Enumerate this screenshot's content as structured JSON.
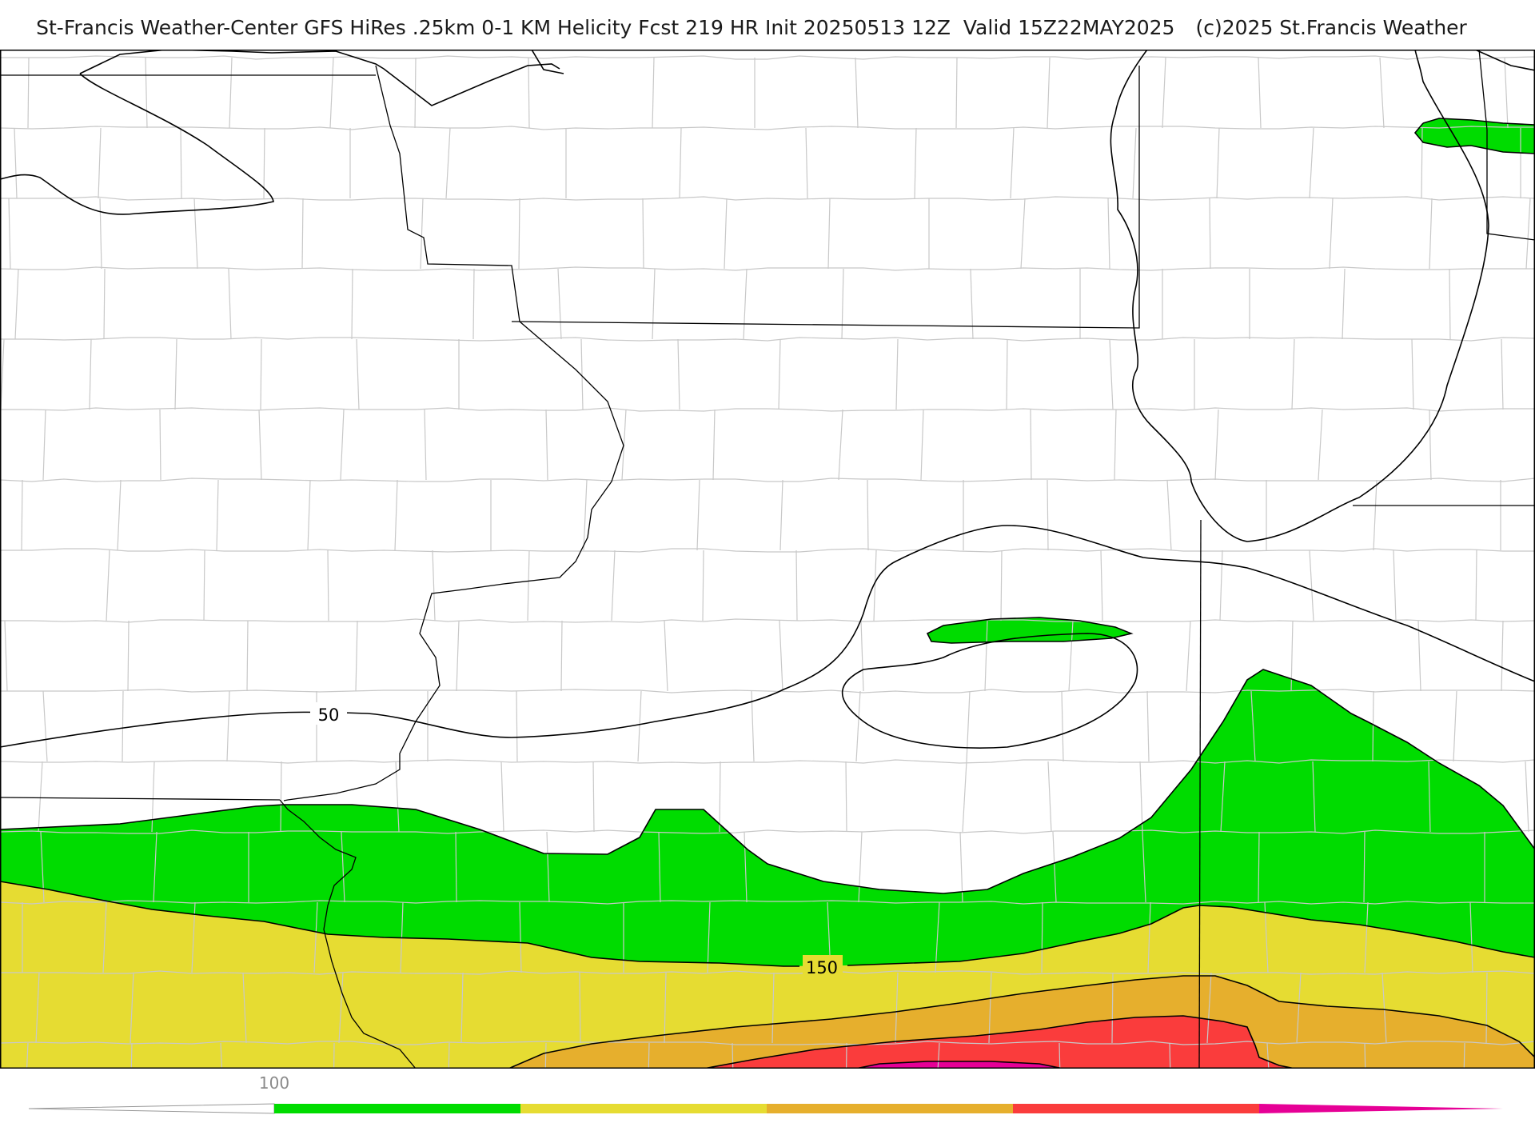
{
  "header": {
    "title": "St-Francis Weather-Center GFS HiRes .25km 0-1 KM Helicity Fcst 219 HR Init 20250513 12Z  Valid 15Z22MAY2025",
    "copyright": "(c)2025 St.Francis Weather"
  },
  "map": {
    "contour_labels": [
      "50",
      "150"
    ],
    "fill_colors": {
      "green": "#00dc00",
      "yellow": "#e6dc32",
      "orange": "#e6af2d",
      "red": "#fa3c3c",
      "magenta": "#e60096"
    },
    "line_colors": {
      "contour": "#000000",
      "state_border": "#000000",
      "county_border": "#c8c8c8"
    }
  },
  "colorbar": {
    "tick_label": "100",
    "bins": [
      "#00dc00",
      "#e6dc32",
      "#e6af2d",
      "#fa3c3c",
      "#e60096"
    ]
  }
}
